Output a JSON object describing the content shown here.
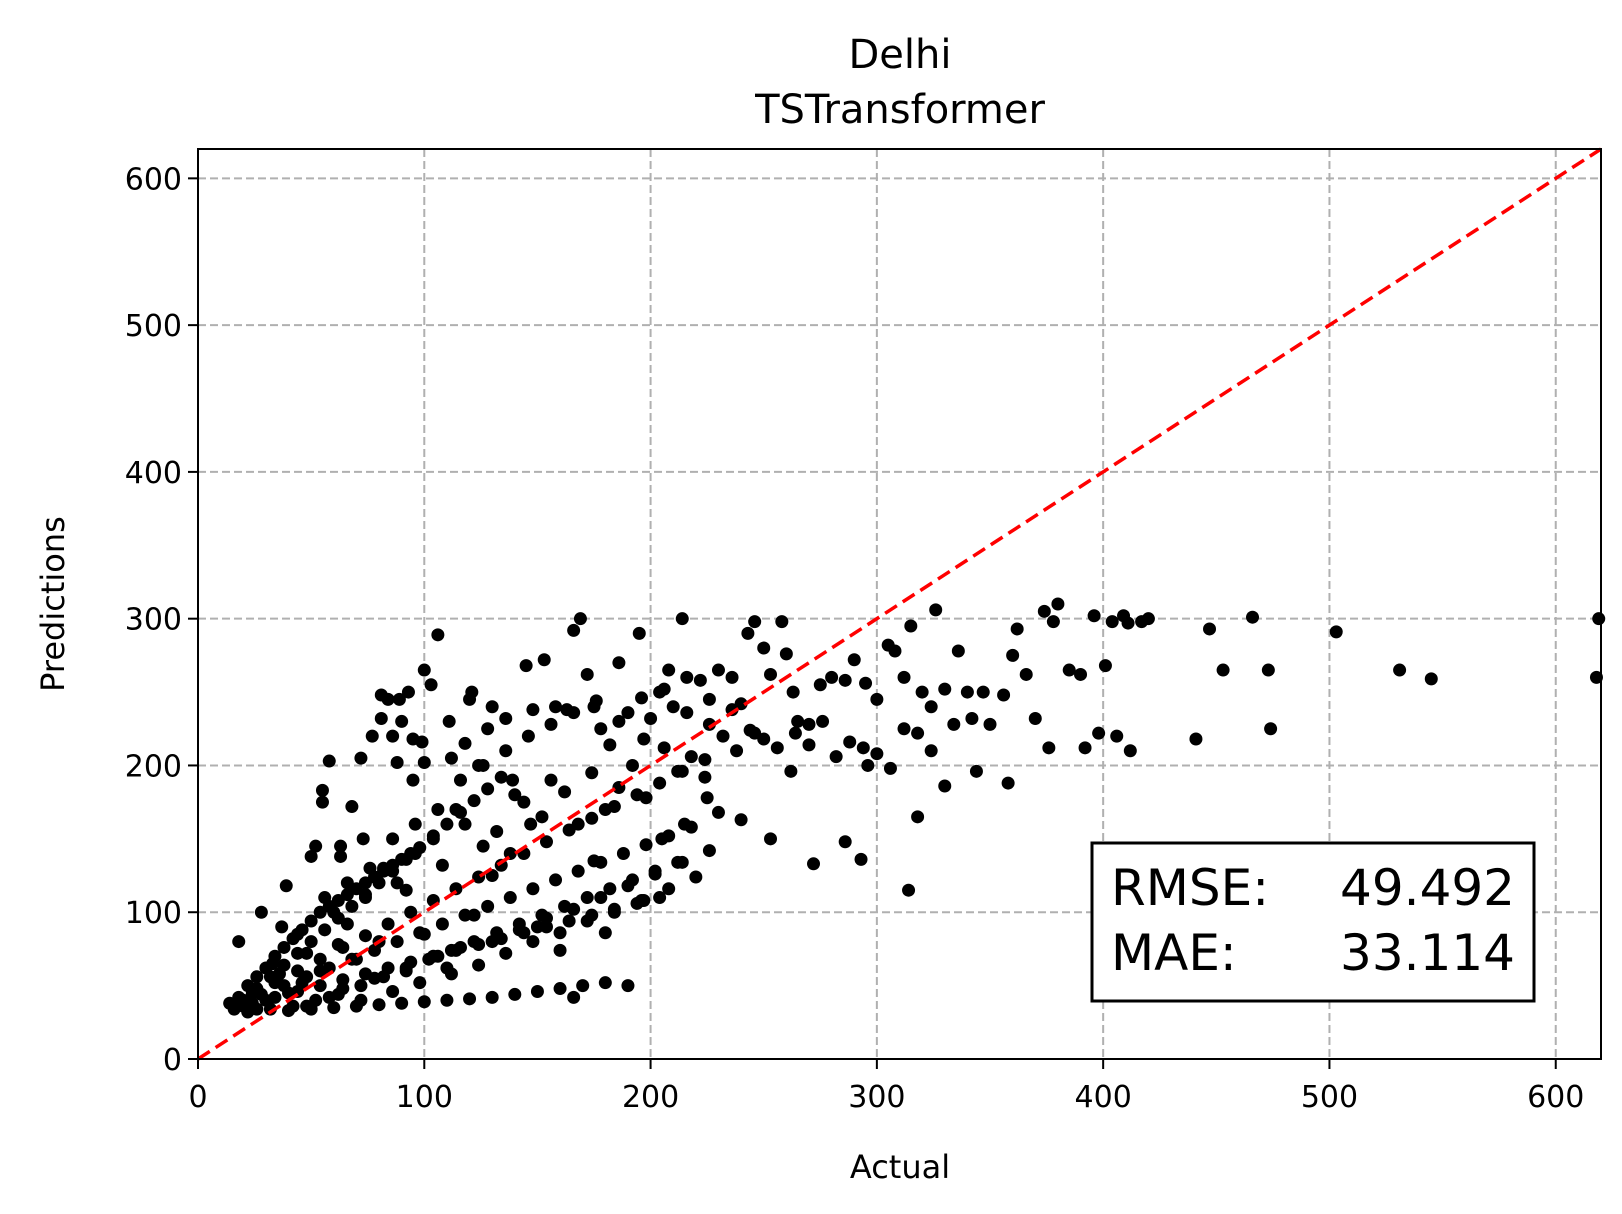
{
  "chart_data": {
    "type": "scatter",
    "title": "Delhi",
    "subtitle": "TSTransformer",
    "xlabel": "Actual",
    "ylabel": "Predictions",
    "xlim": [
      0,
      620
    ],
    "ylim": [
      0,
      620
    ],
    "xticks": [
      "0",
      "100",
      "200",
      "300",
      "400",
      "500",
      "600"
    ],
    "yticks": [
      "0",
      "100",
      "200",
      "300",
      "400",
      "500",
      "600"
    ],
    "grid": true,
    "reference_line": {
      "from": [
        0,
        0
      ],
      "to": [
        620,
        620
      ],
      "color": "#ff0000",
      "style": "dashed"
    },
    "stats": {
      "rmse_label": "RMSE:",
      "rmse_value": "49.492",
      "mae_label": "MAE:",
      "mae_value": "33.114"
    },
    "marker_color": "#000000",
    "points": [
      [
        14,
        38
      ],
      [
        18,
        80
      ],
      [
        24,
        45
      ],
      [
        28,
        100
      ],
      [
        33,
        65
      ],
      [
        37,
        90
      ],
      [
        39,
        118
      ],
      [
        44,
        85
      ],
      [
        50,
        138
      ],
      [
        52,
        145
      ],
      [
        55,
        183
      ],
      [
        55,
        175
      ],
      [
        58,
        203
      ],
      [
        63,
        145
      ],
      [
        63,
        138
      ],
      [
        68,
        172
      ],
      [
        72,
        205
      ],
      [
        73,
        150
      ],
      [
        77,
        220
      ],
      [
        81,
        248
      ],
      [
        81,
        232
      ],
      [
        84,
        245
      ],
      [
        86,
        220
      ],
      [
        88,
        202
      ],
      [
        89,
        245
      ],
      [
        90,
        230
      ],
      [
        93,
        250
      ],
      [
        95,
        218
      ],
      [
        95,
        190
      ],
      [
        99,
        216
      ],
      [
        100,
        202
      ],
      [
        100,
        265
      ],
      [
        103,
        255
      ],
      [
        106,
        289
      ],
      [
        111,
        230
      ],
      [
        112,
        205
      ],
      [
        118,
        215
      ],
      [
        120,
        245
      ],
      [
        121,
        250
      ],
      [
        124,
        200
      ],
      [
        128,
        225
      ],
      [
        130,
        240
      ],
      [
        136,
        232
      ],
      [
        139,
        190
      ],
      [
        145,
        268
      ],
      [
        148,
        238
      ],
      [
        153,
        272
      ],
      [
        158,
        240
      ],
      [
        163,
        238
      ],
      [
        166,
        292
      ],
      [
        169,
        300
      ],
      [
        172,
        262
      ],
      [
        175,
        240
      ],
      [
        178,
        225
      ],
      [
        182,
        214
      ],
      [
        186,
        270
      ],
      [
        190,
        236
      ],
      [
        195,
        290
      ],
      [
        197,
        218
      ],
      [
        200,
        232
      ],
      [
        204,
        250
      ],
      [
        208,
        265
      ],
      [
        210,
        240
      ],
      [
        214,
        300
      ],
      [
        216,
        260
      ],
      [
        222,
        258
      ],
      [
        226,
        245
      ],
      [
        230,
        265
      ],
      [
        236,
        260
      ],
      [
        240,
        242
      ],
      [
        243,
        290
      ],
      [
        246,
        298
      ],
      [
        250,
        280
      ],
      [
        253,
        262
      ],
      [
        258,
        298
      ],
      [
        260,
        276
      ],
      [
        263,
        250
      ],
      [
        265,
        230
      ],
      [
        270,
        228
      ],
      [
        275,
        255
      ],
      [
        280,
        260
      ],
      [
        286,
        258
      ],
      [
        290,
        272
      ],
      [
        295,
        256
      ],
      [
        300,
        245
      ],
      [
        305,
        282
      ],
      [
        308,
        278
      ],
      [
        312,
        260
      ],
      [
        315,
        295
      ],
      [
        320,
        250
      ],
      [
        324,
        240
      ],
      [
        326,
        306
      ],
      [
        330,
        252
      ],
      [
        336,
        278
      ],
      [
        340,
        250
      ],
      [
        347,
        250
      ],
      [
        356,
        248
      ],
      [
        360,
        275
      ],
      [
        362,
        293
      ],
      [
        366,
        262
      ],
      [
        374,
        305
      ],
      [
        378,
        298
      ],
      [
        380,
        310
      ],
      [
        385,
        265
      ],
      [
        390,
        262
      ],
      [
        396,
        302
      ],
      [
        401,
        268
      ],
      [
        404,
        298
      ],
      [
        409,
        302
      ],
      [
        411,
        297
      ],
      [
        417,
        298
      ],
      [
        420,
        300
      ],
      [
        447,
        293
      ],
      [
        453,
        265
      ],
      [
        466,
        301
      ],
      [
        473,
        265
      ],
      [
        474,
        225
      ],
      [
        503,
        291
      ],
      [
        531,
        265
      ],
      [
        545,
        259
      ],
      [
        619,
        300
      ],
      [
        618,
        260
      ],
      [
        441,
        218
      ],
      [
        412,
        210
      ],
      [
        406,
        220
      ],
      [
        398,
        222
      ],
      [
        392,
        212
      ],
      [
        376,
        212
      ],
      [
        370,
        232
      ],
      [
        358,
        188
      ],
      [
        344,
        196
      ],
      [
        330,
        186
      ],
      [
        318,
        165
      ],
      [
        314,
        115
      ],
      [
        296,
        200
      ],
      [
        293,
        136
      ],
      [
        286,
        148
      ],
      [
        272,
        133
      ],
      [
        262,
        196
      ],
      [
        253,
        150
      ],
      [
        240,
        163
      ],
      [
        230,
        168
      ],
      [
        225,
        178
      ],
      [
        215,
        160
      ],
      [
        205,
        150
      ],
      [
        197,
        108
      ],
      [
        190,
        50
      ],
      [
        180,
        86
      ],
      [
        175,
        135
      ],
      [
        166,
        42
      ],
      [
        160,
        74
      ],
      [
        150,
        90
      ],
      [
        147,
        160
      ],
      [
        140,
        180
      ],
      [
        130,
        125
      ],
      [
        122,
        98
      ],
      [
        110,
        62
      ],
      [
        100,
        85
      ],
      [
        92,
        115
      ],
      [
        80,
        80
      ],
      [
        70,
        68
      ],
      [
        62,
        78
      ],
      [
        54,
        60
      ],
      [
        46,
        52
      ],
      [
        40,
        45
      ],
      [
        30,
        40
      ],
      [
        26,
        34
      ],
      [
        20,
        36
      ],
      [
        36,
        58
      ],
      [
        48,
        72
      ],
      [
        60,
        100
      ],
      [
        66,
        92
      ],
      [
        74,
        110
      ],
      [
        82,
        130
      ],
      [
        88,
        120
      ],
      [
        96,
        140
      ],
      [
        104,
        150
      ],
      [
        108,
        132
      ],
      [
        114,
        170
      ],
      [
        118,
        160
      ],
      [
        126,
        145
      ],
      [
        132,
        155
      ],
      [
        138,
        140
      ],
      [
        144,
        175
      ],
      [
        152,
        165
      ],
      [
        156,
        190
      ],
      [
        162,
        182
      ],
      [
        168,
        160
      ],
      [
        174,
        195
      ],
      [
        180,
        170
      ],
      [
        186,
        185
      ],
      [
        192,
        200
      ],
      [
        198,
        178
      ],
      [
        206,
        212
      ],
      [
        212,
        196
      ],
      [
        218,
        206
      ],
      [
        224,
        192
      ],
      [
        232,
        220
      ],
      [
        238,
        210
      ],
      [
        244,
        224
      ],
      [
        250,
        218
      ],
      [
        256,
        212
      ],
      [
        264,
        222
      ],
      [
        270,
        214
      ],
      [
        276,
        230
      ],
      [
        282,
        206
      ],
      [
        288,
        216
      ],
      [
        294,
        212
      ],
      [
        300,
        208
      ],
      [
        306,
        198
      ],
      [
        312,
        225
      ],
      [
        318,
        222
      ],
      [
        324,
        210
      ],
      [
        334,
        228
      ],
      [
        342,
        232
      ],
      [
        350,
        228
      ],
      [
        48,
        36
      ],
      [
        58,
        42
      ],
      [
        64,
        48
      ],
      [
        72,
        40
      ],
      [
        78,
        55
      ],
      [
        86,
        46
      ],
      [
        92,
        60
      ],
      [
        98,
        52
      ],
      [
        106,
        70
      ],
      [
        112,
        58
      ],
      [
        116,
        76
      ],
      [
        124,
        64
      ],
      [
        130,
        80
      ],
      [
        136,
        72
      ],
      [
        142,
        88
      ],
      [
        148,
        80
      ],
      [
        154,
        96
      ],
      [
        160,
        86
      ],
      [
        166,
        102
      ],
      [
        172,
        94
      ],
      [
        178,
        110
      ],
      [
        184,
        100
      ],
      [
        190,
        118
      ],
      [
        196,
        108
      ],
      [
        202,
        126
      ],
      [
        208,
        116
      ],
      [
        214,
        134
      ],
      [
        220,
        124
      ],
      [
        226,
        142
      ],
      [
        22,
        32
      ],
      [
        32,
        34
      ],
      [
        42,
        36
      ],
      [
        52,
        40
      ],
      [
        62,
        44
      ],
      [
        72,
        50
      ],
      [
        82,
        56
      ],
      [
        92,
        62
      ],
      [
        102,
        68
      ],
      [
        112,
        74
      ],
      [
        122,
        80
      ],
      [
        132,
        86
      ],
      [
        142,
        92
      ],
      [
        152,
        98
      ],
      [
        162,
        104
      ],
      [
        172,
        110
      ],
      [
        182,
        116
      ],
      [
        192,
        122
      ],
      [
        202,
        128
      ],
      [
        212,
        134
      ],
      [
        28,
        44
      ],
      [
        38,
        50
      ],
      [
        48,
        56
      ],
      [
        58,
        62
      ],
      [
        68,
        68
      ],
      [
        78,
        74
      ],
      [
        88,
        80
      ],
      [
        98,
        86
      ],
      [
        108,
        92
      ],
      [
        118,
        98
      ],
      [
        128,
        104
      ],
      [
        138,
        110
      ],
      [
        148,
        116
      ],
      [
        158,
        122
      ],
      [
        168,
        128
      ],
      [
        178,
        134
      ],
      [
        188,
        140
      ],
      [
        198,
        146
      ],
      [
        208,
        152
      ],
      [
        218,
        158
      ],
      [
        34,
        52
      ],
      [
        44,
        60
      ],
      [
        54,
        68
      ],
      [
        64,
        76
      ],
      [
        74,
        84
      ],
      [
        84,
        92
      ],
      [
        94,
        100
      ],
      [
        104,
        108
      ],
      [
        114,
        116
      ],
      [
        124,
        124
      ],
      [
        134,
        132
      ],
      [
        144,
        140
      ],
      [
        154,
        148
      ],
      [
        164,
        156
      ],
      [
        174,
        164
      ],
      [
        184,
        172
      ],
      [
        194,
        180
      ],
      [
        204,
        188
      ],
      [
        214,
        196
      ],
      [
        224,
        204
      ],
      [
        20,
        40
      ],
      [
        26,
        48
      ],
      [
        32,
        56
      ],
      [
        38,
        64
      ],
      [
        44,
        72
      ],
      [
        50,
        80
      ],
      [
        56,
        88
      ],
      [
        62,
        96
      ],
      [
        68,
        104
      ],
      [
        74,
        112
      ],
      [
        80,
        120
      ],
      [
        86,
        128
      ],
      [
        92,
        136
      ],
      [
        98,
        144
      ],
      [
        104,
        152
      ],
      [
        110,
        160
      ],
      [
        116,
        168
      ],
      [
        122,
        176
      ],
      [
        128,
        184
      ],
      [
        134,
        192
      ],
      [
        16,
        34
      ],
      [
        24,
        38
      ],
      [
        34,
        42
      ],
      [
        44,
        46
      ],
      [
        54,
        50
      ],
      [
        64,
        54
      ],
      [
        74,
        58
      ],
      [
        84,
        62
      ],
      [
        94,
        66
      ],
      [
        104,
        70
      ],
      [
        114,
        74
      ],
      [
        124,
        78
      ],
      [
        134,
        82
      ],
      [
        144,
        86
      ],
      [
        154,
        90
      ],
      [
        164,
        94
      ],
      [
        174,
        98
      ],
      [
        184,
        102
      ],
      [
        194,
        106
      ],
      [
        204,
        110
      ],
      [
        40,
        33
      ],
      [
        50,
        34
      ],
      [
        60,
        35
      ],
      [
        70,
        36
      ],
      [
        80,
        37
      ],
      [
        90,
        38
      ],
      [
        100,
        39
      ],
      [
        110,
        40
      ],
      [
        120,
        41
      ],
      [
        130,
        42
      ],
      [
        140,
        44
      ],
      [
        150,
        46
      ],
      [
        160,
        48
      ],
      [
        170,
        50
      ],
      [
        180,
        52
      ],
      [
        56,
        110
      ],
      [
        66,
        120
      ],
      [
        76,
        130
      ],
      [
        86,
        150
      ],
      [
        96,
        160
      ],
      [
        106,
        170
      ],
      [
        116,
        190
      ],
      [
        126,
        200
      ],
      [
        136,
        210
      ],
      [
        146,
        220
      ],
      [
        156,
        228
      ],
      [
        166,
        236
      ],
      [
        176,
        244
      ],
      [
        186,
        230
      ],
      [
        196,
        246
      ],
      [
        206,
        252
      ],
      [
        216,
        236
      ],
      [
        226,
        228
      ],
      [
        236,
        238
      ],
      [
        246,
        222
      ],
      [
        18,
        42
      ],
      [
        22,
        50
      ],
      [
        26,
        56
      ],
      [
        30,
        62
      ],
      [
        34,
        70
      ],
      [
        38,
        76
      ],
      [
        42,
        82
      ],
      [
        46,
        88
      ],
      [
        50,
        94
      ],
      [
        54,
        100
      ],
      [
        58,
        104
      ],
      [
        62,
        108
      ],
      [
        66,
        112
      ],
      [
        70,
        116
      ],
      [
        74,
        120
      ],
      [
        78,
        124
      ],
      [
        82,
        128
      ],
      [
        86,
        132
      ],
      [
        90,
        136
      ],
      [
        94,
        140
      ]
    ]
  }
}
